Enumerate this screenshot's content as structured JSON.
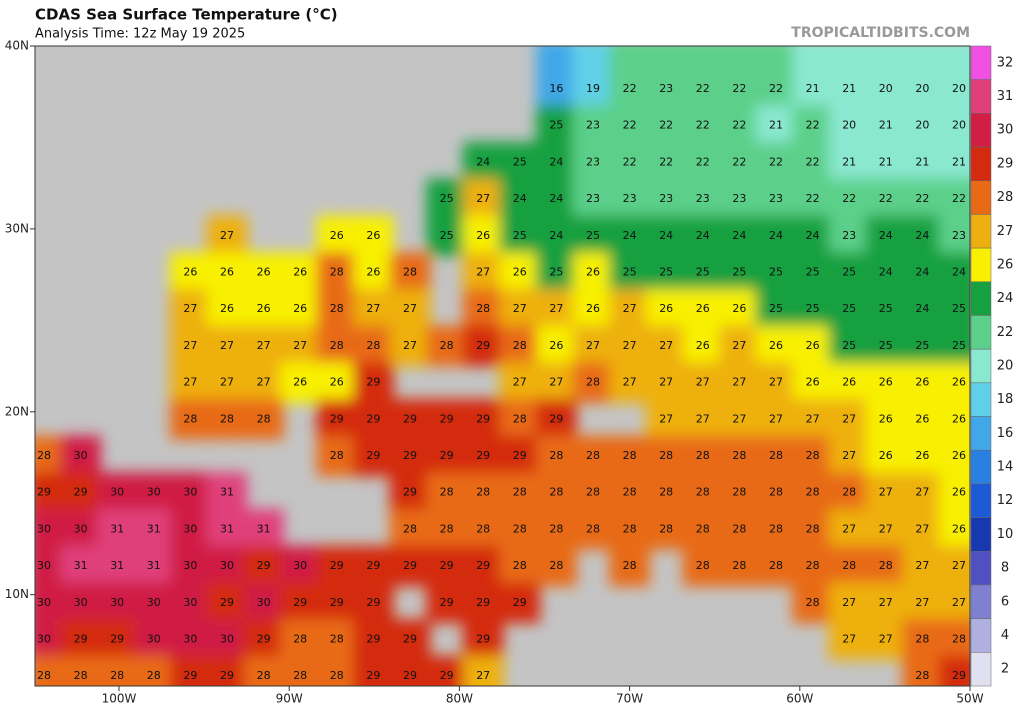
{
  "header": {
    "title": "CDAS Sea Surface Temperature (°C)",
    "subtitle": "Analysis Time: 12z May 19 2025",
    "credit": "TROPICALTIDBITS.COM"
  },
  "axes": {
    "lat_labels": [
      "40N",
      "30N",
      "20N",
      "10N"
    ],
    "lon_labels": [
      "100W",
      "90W",
      "80W",
      "70W",
      "60W",
      "50W"
    ]
  },
  "colorbar": {
    "labels": [
      32,
      31,
      30,
      29,
      28,
      27,
      26,
      24,
      22,
      20,
      18,
      16,
      14,
      12,
      10,
      8,
      6,
      4,
      2
    ],
    "colors": [
      "#f050e0",
      "#e0407a",
      "#d01e44",
      "#d42a10",
      "#e86a14",
      "#eeb010",
      "#f8f000",
      "#16a040",
      "#5cd08a",
      "#8ae8d0",
      "#60d0e8",
      "#40a8e8",
      "#2880e0",
      "#1c5ad8",
      "#1838b0",
      "#5050c0",
      "#8080d0",
      "#b0b0e0",
      "#e0e0f0"
    ]
  },
  "grid": {
    "rows": [
      [
        null,
        null,
        null,
        null,
        null,
        null,
        null,
        null,
        null,
        null,
        null,
        null,
        null,
        null,
        16,
        19,
        22,
        23,
        22,
        22,
        22,
        21,
        21,
        20,
        20,
        20
      ],
      [
        null,
        null,
        null,
        null,
        null,
        null,
        null,
        null,
        null,
        null,
        null,
        null,
        null,
        null,
        25,
        23,
        22,
        22,
        22,
        22,
        21,
        22,
        20,
        21,
        20,
        20
      ],
      [
        null,
        null,
        null,
        null,
        null,
        null,
        null,
        null,
        null,
        null,
        null,
        null,
        24,
        25,
        24,
        23,
        22,
        22,
        22,
        22,
        22,
        22,
        21,
        21,
        21,
        21
      ],
      [
        null,
        null,
        null,
        null,
        null,
        null,
        null,
        null,
        null,
        null,
        null,
        25,
        27,
        24,
        24,
        23,
        23,
        23,
        23,
        23,
        23,
        22,
        22,
        22,
        22,
        22
      ],
      [
        null,
        null,
        null,
        null,
        null,
        27,
        null,
        null,
        26,
        26,
        null,
        25,
        26,
        25,
        24,
        25,
        24,
        24,
        24,
        24,
        24,
        24,
        23,
        24,
        24,
        23
      ],
      [
        null,
        null,
        null,
        null,
        26,
        26,
        26,
        26,
        28,
        26,
        28,
        null,
        27,
        26,
        25,
        26,
        25,
        25,
        25,
        25,
        25,
        25,
        25,
        24,
        24,
        24
      ],
      [
        null,
        null,
        null,
        null,
        27,
        26,
        26,
        26,
        28,
        27,
        27,
        null,
        28,
        27,
        27,
        26,
        27,
        26,
        26,
        26,
        25,
        25,
        25,
        25,
        24,
        25
      ],
      [
        null,
        null,
        null,
        null,
        27,
        27,
        27,
        27,
        28,
        28,
        27,
        28,
        29,
        28,
        26,
        27,
        27,
        27,
        26,
        27,
        26,
        26,
        25,
        25,
        25,
        25
      ],
      [
        null,
        null,
        null,
        null,
        27,
        27,
        27,
        26,
        26,
        29,
        null,
        null,
        null,
        27,
        27,
        28,
        27,
        27,
        27,
        27,
        27,
        26,
        26,
        26,
        26,
        26
      ],
      [
        null,
        null,
        null,
        null,
        28,
        28,
        28,
        null,
        29,
        29,
        29,
        29,
        29,
        28,
        29,
        null,
        null,
        27,
        27,
        27,
        27,
        27,
        27,
        26,
        26,
        26
      ],
      [
        28,
        30,
        null,
        null,
        null,
        null,
        null,
        null,
        28,
        29,
        29,
        29,
        29,
        29,
        28,
        28,
        28,
        28,
        28,
        28,
        28,
        28,
        27,
        26,
        26,
        26
      ],
      [
        29,
        29,
        30,
        30,
        30,
        31,
        null,
        null,
        null,
        null,
        29,
        28,
        28,
        28,
        28,
        28,
        28,
        28,
        28,
        28,
        28,
        28,
        28,
        27,
        27,
        26
      ],
      [
        30,
        30,
        31,
        31,
        30,
        31,
        31,
        null,
        null,
        null,
        28,
        28,
        28,
        28,
        28,
        28,
        28,
        28,
        28,
        28,
        28,
        28,
        27,
        27,
        27,
        26
      ],
      [
        30,
        31,
        31,
        31,
        30,
        30,
        29,
        30,
        29,
        29,
        29,
        29,
        29,
        28,
        28,
        null,
        28,
        null,
        28,
        28,
        28,
        28,
        28,
        28,
        27,
        27
      ],
      [
        30,
        30,
        30,
        30,
        30,
        29,
        30,
        29,
        29,
        29,
        null,
        29,
        29,
        29,
        null,
        null,
        null,
        null,
        null,
        null,
        null,
        28,
        27,
        27,
        27,
        27
      ],
      [
        30,
        29,
        29,
        30,
        30,
        30,
        29,
        28,
        28,
        29,
        29,
        null,
        29,
        null,
        null,
        null,
        null,
        null,
        null,
        null,
        null,
        null,
        27,
        27,
        28,
        28
      ],
      [
        28,
        28,
        28,
        28,
        29,
        29,
        28,
        28,
        28,
        29,
        29,
        29,
        27,
        null,
        null,
        null,
        null,
        null,
        null,
        null,
        null,
        null,
        null,
        null,
        28,
        29
      ]
    ]
  }
}
